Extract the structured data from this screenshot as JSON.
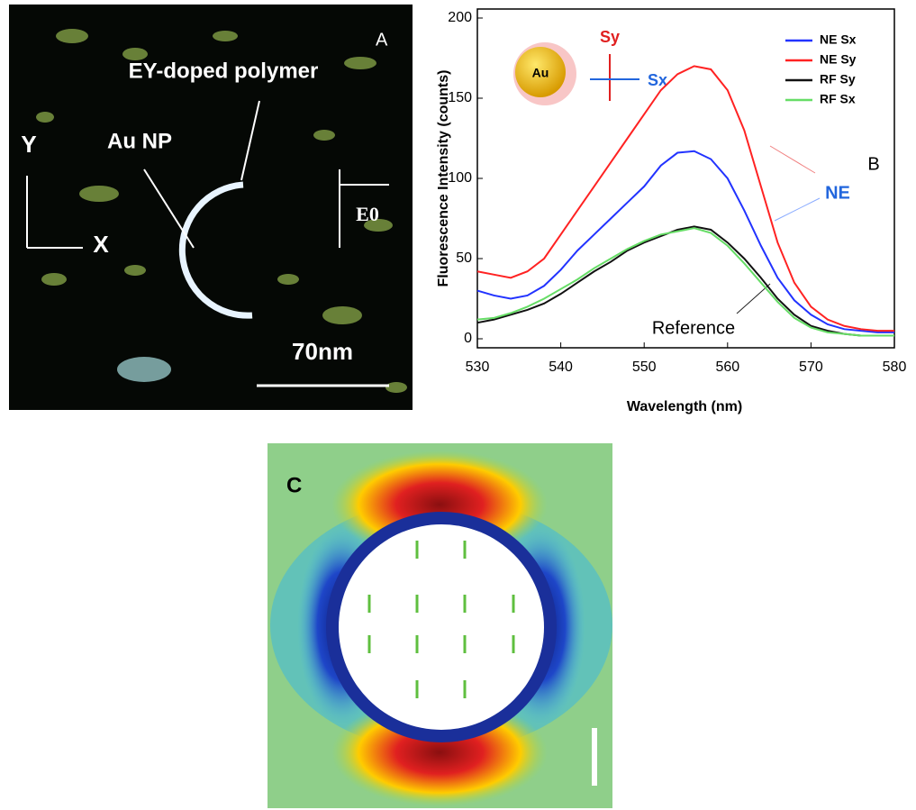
{
  "panel_a": {
    "label": "A",
    "polymer_label": "EY-doped polymer",
    "np_label": "Au NP",
    "y_axis": "Y",
    "x_axis": "X",
    "field_label": "E0",
    "scale_label": "70nm"
  },
  "chart_data": {
    "type": "line",
    "panel_label": "B",
    "x_label": "Wavelength (nm)",
    "y_label": "Fluorescence Intensity (counts)",
    "annotations": {
      "ne": "NE",
      "reference": "Reference",
      "particle": "Au",
      "sy": "Sy",
      "sx": "Sx"
    },
    "x": [
      530,
      532,
      534,
      536,
      538,
      540,
      542,
      544,
      546,
      548,
      550,
      552,
      554,
      556,
      558,
      560,
      562,
      564,
      566,
      568,
      570,
      572,
      574,
      576,
      578,
      580
    ],
    "series": [
      {
        "name": "NE Sx",
        "color": "#2233ff",
        "values": [
          30,
          27,
          25,
          27,
          33,
          43,
          55,
          65,
          75,
          85,
          95,
          108,
          116,
          117,
          112,
          100,
          80,
          58,
          38,
          24,
          15,
          9,
          6,
          5,
          4,
          4
        ]
      },
      {
        "name": "NE Sy",
        "color": "#ff2222",
        "values": [
          42,
          40,
          38,
          42,
          50,
          65,
          80,
          95,
          110,
          125,
          140,
          155,
          165,
          170,
          168,
          155,
          130,
          95,
          60,
          35,
          20,
          12,
          8,
          6,
          5,
          5
        ]
      },
      {
        "name": "RF Sy",
        "color": "#111111",
        "values": [
          10,
          12,
          15,
          18,
          22,
          28,
          35,
          42,
          48,
          55,
          60,
          64,
          68,
          70,
          68,
          60,
          50,
          38,
          25,
          15,
          8,
          5,
          3,
          2,
          2,
          2
        ]
      },
      {
        "name": "RF Sx",
        "color": "#66dd66",
        "values": [
          12,
          13,
          16,
          20,
          25,
          31,
          37,
          44,
          50,
          56,
          61,
          65,
          67,
          69,
          66,
          58,
          47,
          35,
          23,
          13,
          7,
          4,
          3,
          2,
          2,
          2
        ]
      }
    ],
    "xlim": [
      530,
      580
    ],
    "xticks": [
      530,
      540,
      550,
      560,
      570,
      580
    ],
    "ylim": [
      0,
      200
    ],
    "yticks": [
      0,
      50,
      100,
      150,
      200
    ],
    "grid": false,
    "legend": "upper right"
  },
  "panel_c": {
    "label": "C"
  }
}
